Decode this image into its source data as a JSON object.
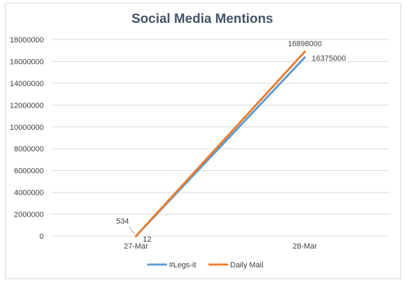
{
  "chart_data": {
    "type": "line",
    "title": "Social Media Mentions",
    "xlabel": "",
    "ylabel": "",
    "categories": [
      "27-Mar",
      "28-Mar"
    ],
    "ylim": [
      0,
      18000000
    ],
    "yticks": [
      0,
      2000000,
      4000000,
      6000000,
      8000000,
      10000000,
      12000000,
      14000000,
      16000000,
      18000000
    ],
    "grid": true,
    "legend_position": "bottom",
    "series": [
      {
        "name": "#Legs-it",
        "values": [
          12,
          16375000
        ],
        "labels": [
          "12",
          "16375000"
        ],
        "color": "#5b9bd5"
      },
      {
        "name": "Daily Mail",
        "values": [
          534,
          16898000
        ],
        "labels": [
          "534",
          "16898000"
        ],
        "color": "#ed7d31"
      }
    ]
  }
}
